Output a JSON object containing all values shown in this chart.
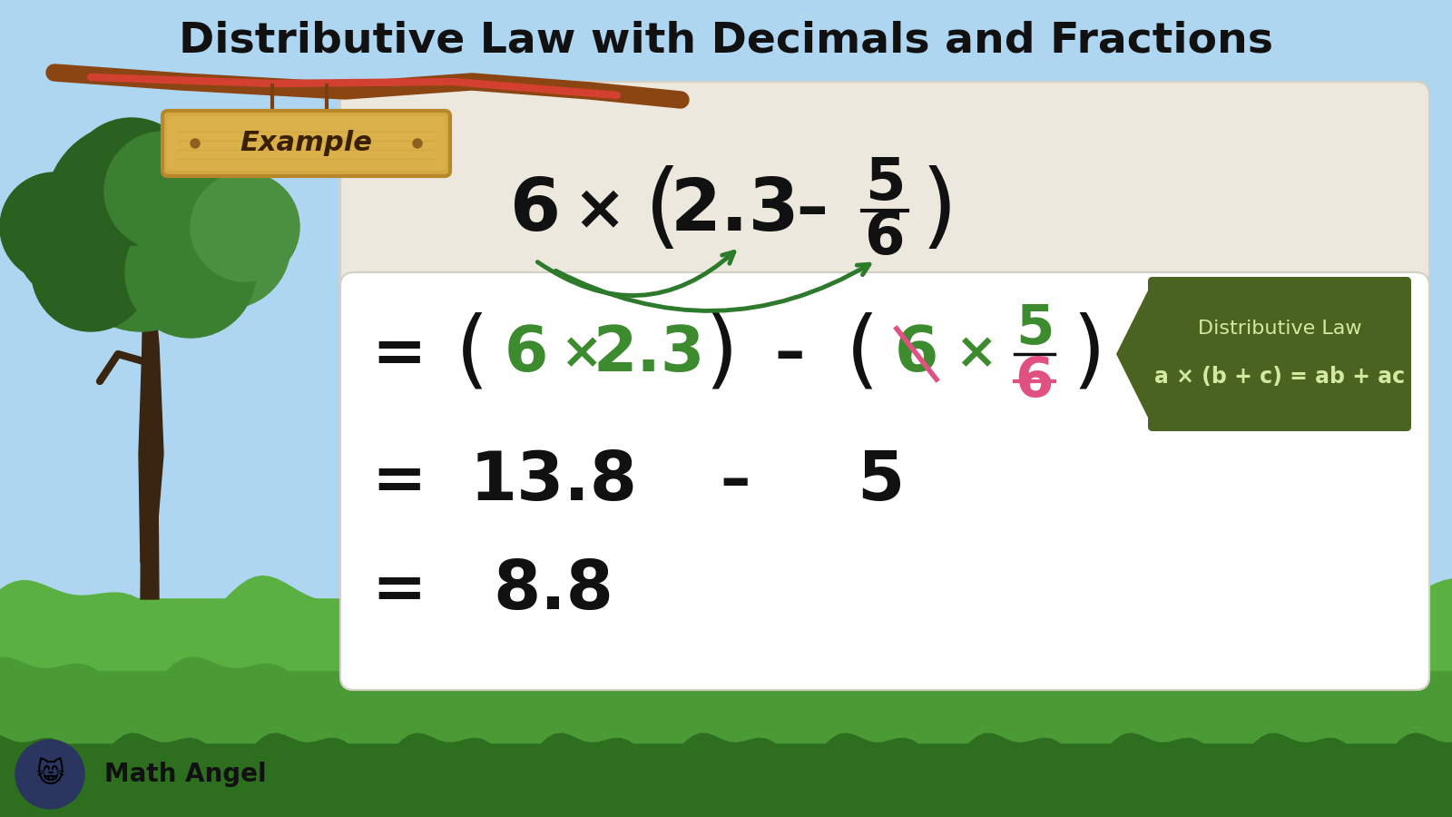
{
  "title": "Distributive Law with Decimals and Fractions",
  "title_fontsize": 34,
  "bg_sky_color": "#aed6f1",
  "bg_sky_bottom": "#d6eaf8",
  "main_box_color": "#ede8de",
  "white_box_color": "#ffffff",
  "dark_green_box": "#4a6320",
  "dark_green_box_text_color": "#d4e8a0",
  "example_label": "Example",
  "dist_law_line1": "Distributive Law",
  "dist_law_line2": "a × (b + c) = ab + ac",
  "arrow_color": "#2d7a2d",
  "green_text": "#3d8b2f",
  "pink_color": "#e05080",
  "black_text": "#111111",
  "grass_dark": "#3a7a28",
  "grass_mid": "#4a9a35",
  "grass_light": "#5ab040",
  "tree_trunk": "#5a3a10",
  "tree_foliage_dark": "#2a6020",
  "tree_foliage_mid": "#3a8030",
  "tree_branch": "#c47030"
}
